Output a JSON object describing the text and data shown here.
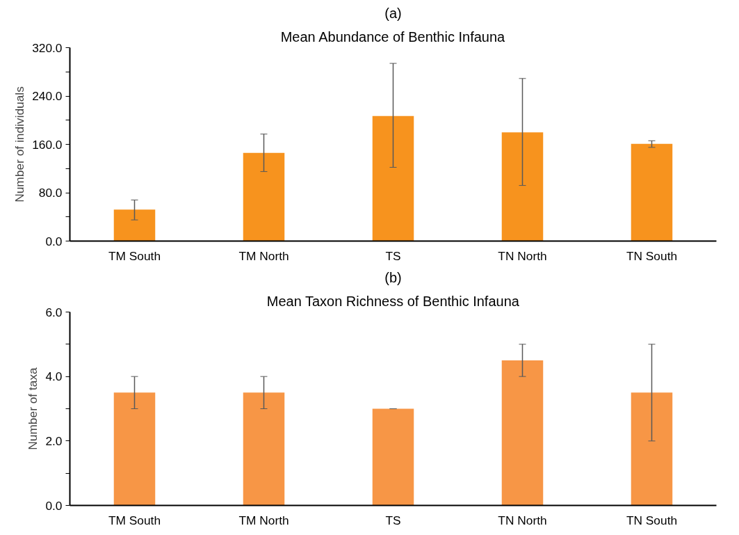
{
  "chart_data": [
    {
      "type": "bar",
      "title": "(a)",
      "subtitle": "Mean Abundance of Benthic Infauna",
      "ylabel": "Number of individuals",
      "categories": [
        "TM South",
        "TM North",
        "TS",
        "TN North",
        "TN South"
      ],
      "values": [
        52,
        146,
        207,
        180,
        161
      ],
      "color": "#f7931e",
      "errors": [
        [
          35,
          68
        ],
        [
          115,
          177
        ],
        [
          122,
          294
        ],
        [
          92,
          269
        ],
        [
          155,
          166
        ]
      ],
      "ylim": [
        0,
        320
      ],
      "yticks": [
        {
          "value": 0,
          "label": "0.0"
        },
        {
          "value": 40,
          "label": null
        },
        {
          "value": 80,
          "label": "80.0"
        },
        {
          "value": 120,
          "label": null
        },
        {
          "value": 160,
          "label": "160.0"
        },
        {
          "value": 200,
          "label": null
        },
        {
          "value": 240,
          "label": "240.0"
        },
        {
          "value": 280,
          "label": null
        },
        {
          "value": 320,
          "label": "320.0"
        }
      ],
      "grid": false
    },
    {
      "type": "bar",
      "title": "(b)",
      "subtitle": "Mean Taxon Richness of Benthic Infauna",
      "ylabel": "Number of taxa",
      "categories": [
        "TM South",
        "TM North",
        "TS",
        "TN North",
        "TN South"
      ],
      "values": [
        3.5,
        3.5,
        3.0,
        4.5,
        3.5
      ],
      "color": "#f79646",
      "errors": [
        [
          3,
          4
        ],
        [
          3,
          4
        ],
        [
          3,
          3
        ],
        [
          4,
          5
        ],
        [
          2,
          5
        ]
      ],
      "ylim": [
        0,
        6
      ],
      "yticks": [
        {
          "value": 0,
          "label": "0.0"
        },
        {
          "value": 1,
          "label": null
        },
        {
          "value": 2,
          "label": "2.0"
        },
        {
          "value": 3,
          "label": null
        },
        {
          "value": 4,
          "label": "4.0"
        },
        {
          "value": 5,
          "label": null
        },
        {
          "value": 6,
          "label": "6.0"
        }
      ],
      "grid": false
    }
  ]
}
